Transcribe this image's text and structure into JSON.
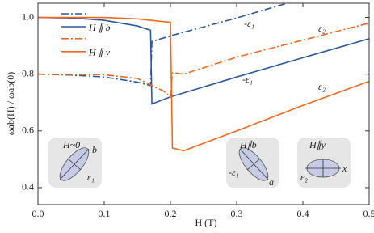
{
  "chart_data": {
    "type": "line",
    "xlabel": "H (T)",
    "ylabel": "ωab(H) / ωab(0)",
    "xlim": [
      0,
      0.5
    ],
    "ylim": [
      0.34,
      1.05
    ],
    "xticks": [
      {
        "value": 0,
        "label": "0.0"
      },
      0.1,
      0.2,
      0.3,
      0.4,
      0.5
    ],
    "yticks": [
      0.4,
      0.6,
      0.8,
      {
        "value": 1,
        "label": "1.0"
      }
    ],
    "series": [
      {
        "name": "H ∥ b",
        "color": "#2b5a9e",
        "style": "solid",
        "x": [
          0,
          0.05,
          0.1,
          0.15,
          0.17,
          0.172,
          0.2,
          0.3,
          0.4,
          0.5
        ],
        "values": [
          1.0,
          0.998,
          0.99,
          0.97,
          0.955,
          0.695,
          0.72,
          0.79,
          0.858,
          0.925
        ]
      },
      {
        "name": "H ∥ b",
        "color": "#2b5a9e",
        "style": "dashdot",
        "x": [
          0,
          0.05,
          0.1,
          0.15,
          0.17,
          0.172,
          0.2,
          0.3,
          0.376
        ],
        "values": [
          0.8,
          0.797,
          0.79,
          0.772,
          0.76,
          0.915,
          0.935,
          0.998,
          1.05
        ]
      },
      {
        "name": "H ∥ y",
        "color": "#f06a1e",
        "style": "solid",
        "x": [
          0,
          0.1,
          0.15,
          0.19,
          0.2,
          0.203,
          0.22,
          0.3,
          0.4,
          0.5
        ],
        "values": [
          1.0,
          1.0,
          0.995,
          0.985,
          0.983,
          0.54,
          0.53,
          0.6,
          0.69,
          0.775
        ]
      },
      {
        "name": "H ∥ y",
        "color": "#f06a1e",
        "style": "dashdot",
        "x": [
          0,
          0.1,
          0.15,
          0.19,
          0.2,
          0.203,
          0.22,
          0.3,
          0.4,
          0.5
        ],
        "values": [
          0.8,
          0.798,
          0.785,
          0.74,
          0.72,
          0.805,
          0.8,
          0.86,
          0.92,
          0.98
        ]
      }
    ],
    "annotations": [
      "-ε₁",
      "ε₂",
      "-ε₁",
      "ε₂"
    ],
    "insets": [
      {
        "field": "H~0",
        "axis": "b",
        "eps": "ε₁"
      },
      {
        "field": "H∥b",
        "axis": "a",
        "eps": "-ε₁"
      },
      {
        "field": "H∥y",
        "axis": "x",
        "eps": "ε₂"
      }
    ]
  }
}
